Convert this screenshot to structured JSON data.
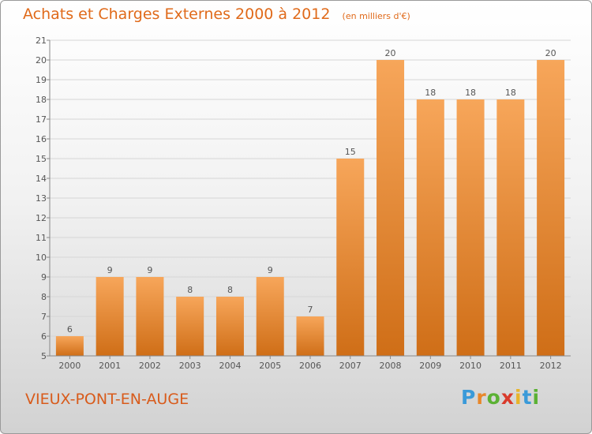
{
  "title": "Achats et Charges Externes 2000 à 2012",
  "unit": "(en milliers d'€)",
  "commune": "VIEUX-PONT-EN-AUGE",
  "logo": {
    "letters": [
      "P",
      "r",
      "o",
      "x",
      "i",
      "t",
      "i"
    ],
    "colors": [
      "#3a9ad9",
      "#e8872a",
      "#5bb134",
      "#d93a2b",
      "#e8b42a",
      "#3a9ad9",
      "#5bb134"
    ]
  },
  "colors": {
    "bar_top": "#f7a65a",
    "bar_bottom": "#cf6e17",
    "title": "#e06a1a"
  },
  "chart_data": {
    "type": "bar",
    "categories": [
      "2000",
      "2001",
      "2002",
      "2003",
      "2004",
      "2005",
      "2006",
      "2007",
      "2008",
      "2009",
      "2010",
      "2011",
      "2012"
    ],
    "values": [
      6,
      9,
      9,
      8,
      8,
      9,
      7,
      15,
      20,
      18,
      18,
      18,
      20
    ],
    "ylim": [
      5,
      21
    ],
    "yticks": [
      5,
      6,
      7,
      8,
      9,
      10,
      11,
      12,
      13,
      14,
      15,
      16,
      17,
      18,
      19,
      20,
      21
    ],
    "grid": true,
    "data_labels": true
  }
}
